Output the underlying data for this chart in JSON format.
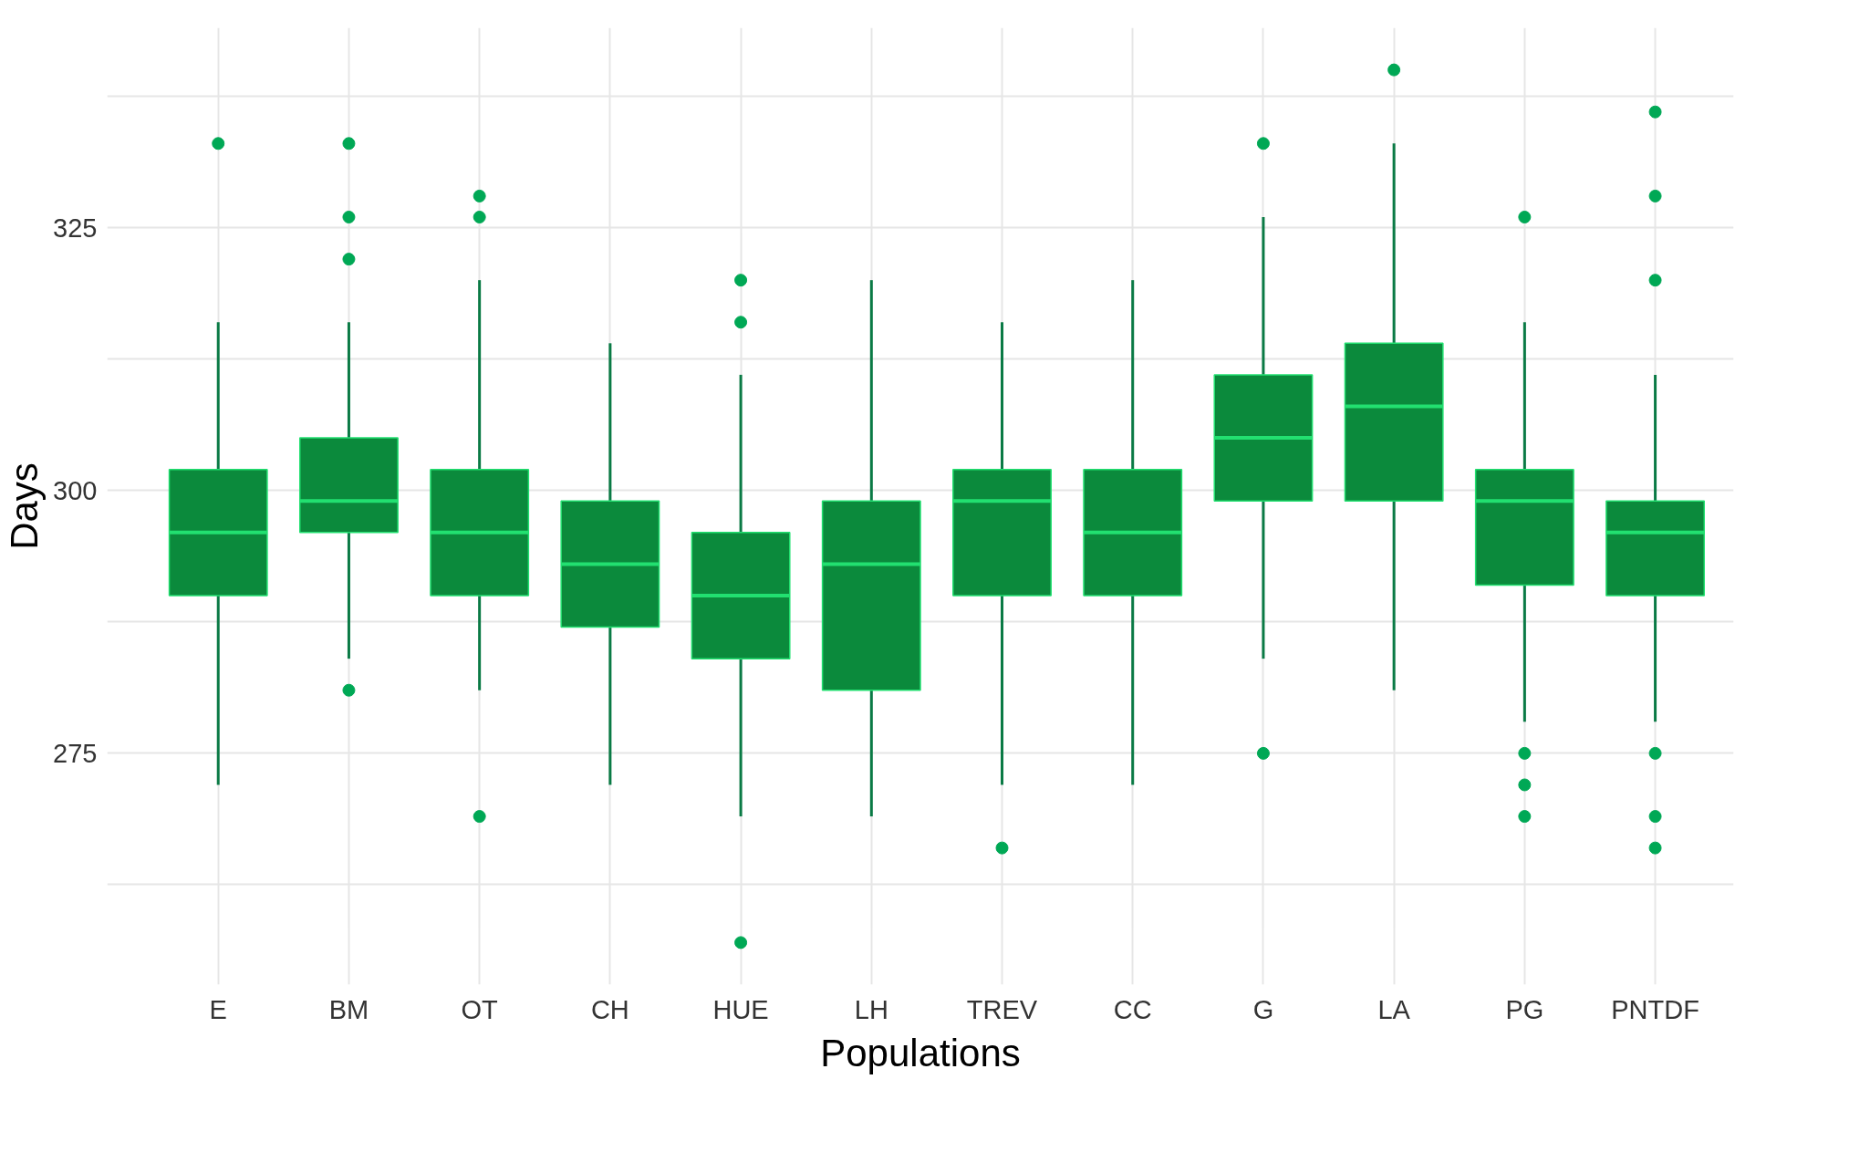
{
  "chart_data": {
    "type": "box",
    "xlabel": "Populations",
    "ylabel": "Days",
    "categories": [
      "E",
      "BM",
      "OT",
      "CH",
      "HUE",
      "LH",
      "TREV",
      "CC",
      "G",
      "LA",
      "PG",
      "PNTDF"
    ],
    "series": [
      {
        "color": "#0b8a3c",
        "boxes": [
          {
            "low": 272,
            "q1": 290,
            "median": 296,
            "q3": 302,
            "high": 316,
            "outliers": [
              333
            ]
          },
          {
            "low": 284,
            "q1": 296,
            "median": 299,
            "q3": 305,
            "high": 316,
            "outliers": [
              333,
              326,
              322,
              281
            ]
          },
          {
            "low": 281,
            "q1": 290,
            "median": 296,
            "q3": 302,
            "high": 320,
            "outliers": [
              328,
              326,
              269
            ]
          },
          {
            "low": 272,
            "q1": 287,
            "median": 293,
            "q3": 299,
            "high": 314
          },
          {
            "low": 269,
            "q1": 284,
            "median": 290,
            "q3": 296,
            "high": 311,
            "outliers": [
              320,
              316,
              257
            ]
          },
          {
            "low": 269,
            "q1": 281,
            "median": 293,
            "q3": 299,
            "high": 320
          },
          {
            "low": 272,
            "q1": 290,
            "median": 299,
            "q3": 302,
            "high": 316,
            "outliers": [
              266
            ]
          },
          {
            "low": 272,
            "q1": 290,
            "median": 296,
            "q3": 302,
            "high": 320
          },
          {
            "low": 284,
            "q1": 299,
            "median": 305,
            "q3": 311,
            "high": 326,
            "outliers": [
              333,
              275
            ]
          },
          {
            "low": 281,
            "q1": 299,
            "median": 308,
            "q3": 314,
            "high": 333,
            "outliers": [
              340
            ]
          },
          {
            "low": 278,
            "q1": 291,
            "median": 299,
            "q3": 302,
            "high": 316,
            "outliers": [
              326,
              275,
              272,
              269
            ]
          },
          {
            "low": 278,
            "q1": 290,
            "median": 296,
            "q3": 299,
            "high": 311,
            "outliers": [
              336,
              328,
              320,
              275,
              269,
              266
            ]
          }
        ]
      }
    ],
    "ylim": [
      253,
      344
    ],
    "yticks": [
      {
        "value": 262.5,
        "label": null
      },
      275,
      {
        "value": 287.5,
        "label": null
      },
      300,
      {
        "value": 312.5,
        "label": null
      },
      325,
      {
        "value": 337.5,
        "label": null
      }
    ],
    "grid": true
  }
}
